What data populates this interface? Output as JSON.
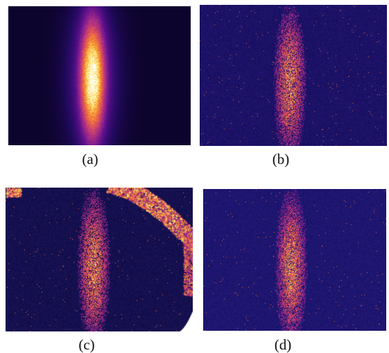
{
  "panels": [
    {
      "id": "a",
      "caption": "(a)",
      "background": "#05051e",
      "signal": "strong"
    },
    {
      "id": "b",
      "caption": "(b)",
      "background": "#1c1266",
      "signal": "weak"
    },
    {
      "id": "c",
      "caption": "(c)",
      "background": "#15104f",
      "signal": "weak"
    },
    {
      "id": "d",
      "caption": "(d)",
      "background": "#1e1670",
      "signal": "weak"
    }
  ],
  "colormap": [
    "#000010",
    "#230a60",
    "#5a0f8a",
    "#a02a8a",
    "#e0505a",
    "#f7902a",
    "#fde870",
    "#ffffff"
  ]
}
